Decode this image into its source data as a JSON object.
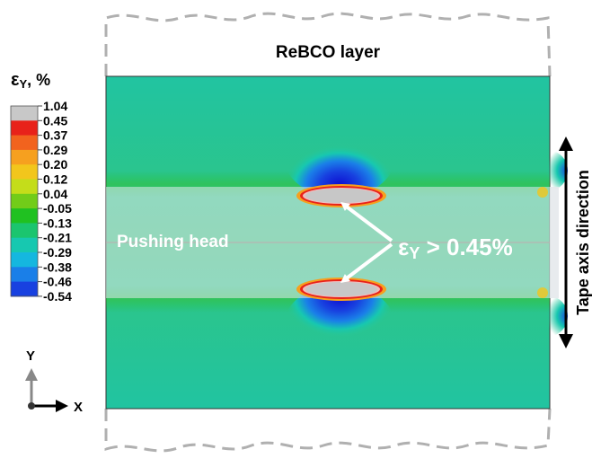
{
  "figure": {
    "title": "ReBCO layer",
    "legend": {
      "title_symbol": "ε",
      "title_subscript": "Y",
      "title_unit": ", %",
      "levels": [
        {
          "label": "1.04",
          "color": "#c8c8c8"
        },
        {
          "label": "0.45",
          "color": "#e8221a"
        },
        {
          "label": "0.37",
          "color": "#f2631e"
        },
        {
          "label": "0.29",
          "color": "#f6a01f"
        },
        {
          "label": "0.20",
          "color": "#f2c61c"
        },
        {
          "label": "0.12",
          "color": "#c4dd1a"
        },
        {
          "label": "0.04",
          "color": "#72cc19"
        },
        {
          "label": "-0.05",
          "color": "#20c121"
        },
        {
          "label": "-0.13",
          "color": "#1bc56f"
        },
        {
          "label": "-0.21",
          "color": "#17c8b0"
        },
        {
          "label": "-0.29",
          "color": "#15b7df"
        },
        {
          "label": "-0.38",
          "color": "#1a7fe8"
        },
        {
          "label": "-0.46",
          "color": "#1841e0"
        },
        {
          "label": "-0.54",
          "color": "#0d0cd0"
        }
      ]
    },
    "pushing_head_label": "Pushing head",
    "annotation": {
      "symbol": "ε",
      "subscript": "Y",
      "condition": " > 0.45%"
    },
    "tape_axis_label": "Tape axis direction",
    "axes": {
      "y_label": "Y",
      "x_label": "X"
    },
    "colors": {
      "background_strain": "#29c693",
      "pushing_head_overlay": "#dfe3e6",
      "high_strain_region": "#c7c7c7",
      "arrow": "#ffffff",
      "outline_dashed": "#b0b0b0"
    }
  }
}
